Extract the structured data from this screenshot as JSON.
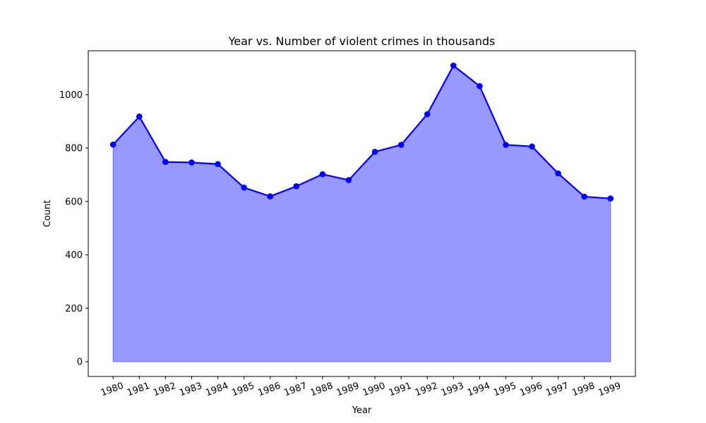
{
  "chart_data": {
    "type": "area",
    "title": "Year vs. Number of violent crimes in thousands",
    "xlabel": "Year",
    "ylabel": "Count",
    "x": [
      1980,
      1981,
      1982,
      1983,
      1984,
      1985,
      1986,
      1987,
      1988,
      1989,
      1990,
      1991,
      1992,
      1993,
      1994,
      1995,
      1996,
      1997,
      1998,
      1999
    ],
    "x_tick_labels": [
      "1980",
      "1981",
      "1982",
      "1983",
      "1984",
      "1985",
      "1986",
      "1987",
      "1988",
      "1989",
      "1990",
      "1991",
      "1992",
      "1993",
      "1994",
      "1995",
      "1996",
      "1997",
      "1998",
      "1999"
    ],
    "series": [
      {
        "values": [
          813,
          918,
          748,
          746,
          740,
          652,
          619,
          657,
          702,
          680,
          786,
          812,
          927,
          1109,
          1032,
          812,
          806,
          705,
          618,
          611
        ]
      }
    ],
    "xlim": [
      1979.05,
      1999.95
    ],
    "ylim": [
      -55.45,
      1164.45
    ],
    "y_ticks": [
      0,
      200,
      400,
      600,
      800,
      1000
    ],
    "y_tick_labels": [
      "0",
      "200",
      "400",
      "600",
      "800",
      "1000"
    ],
    "grid": false,
    "line_color": "#0000ff",
    "fill_color": "#9999ff",
    "fill_edge_color": "#6666ff"
  }
}
